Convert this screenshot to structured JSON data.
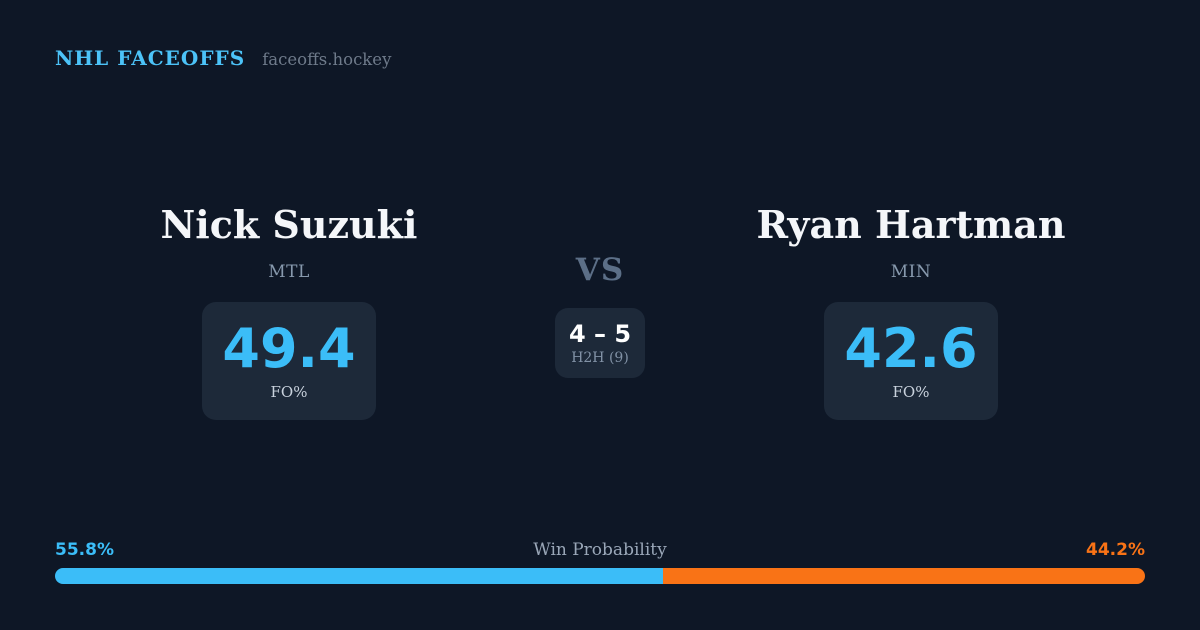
{
  "header": {
    "brand": "NHL FACEOFFS",
    "site": "faceoffs.hockey"
  },
  "players": [
    {
      "name": "Nick Suzuki",
      "team": "MTL",
      "fo_pct": "49.4",
      "fo_label": "FO%"
    },
    {
      "name": "Ryan Hartman",
      "team": "MIN",
      "fo_pct": "42.6",
      "fo_label": "FO%"
    }
  ],
  "versus": {
    "label": "VS",
    "h2h_score": "4 – 5",
    "h2h_label": "H2H (9)"
  },
  "win_probability": {
    "title": "Win Probability",
    "left_label": "55.8%",
    "right_label": "44.2%",
    "left_value": 55.8,
    "right_value": 44.2
  },
  "colors": {
    "bg": "#0e1726",
    "box": "#1d2939",
    "accent_blue": "#3bbdf8",
    "accent_orange": "#f97316",
    "name_white": "#f4f6f9",
    "muted": "#8799ad",
    "muted_dark": "#5c6f87",
    "prob_title": "#9aa7b8"
  },
  "chart_data": {
    "type": "bar",
    "orientation": "horizontal-stacked",
    "title": "Win Probability",
    "series": [
      {
        "name": "Nick Suzuki (MTL)",
        "value": 55.8,
        "color": "#3bbdf8"
      },
      {
        "name": "Ryan Hartman (MIN)",
        "value": 44.2,
        "color": "#f97316"
      }
    ],
    "xlim": [
      0,
      100
    ],
    "annotations": [
      "Nick Suzuki FO% 49.4",
      "Ryan Hartman FO% 42.6",
      "Head-to-head record 4 – 5 over 9 faceoffs"
    ],
    "legend_position": "none",
    "grid": false
  }
}
